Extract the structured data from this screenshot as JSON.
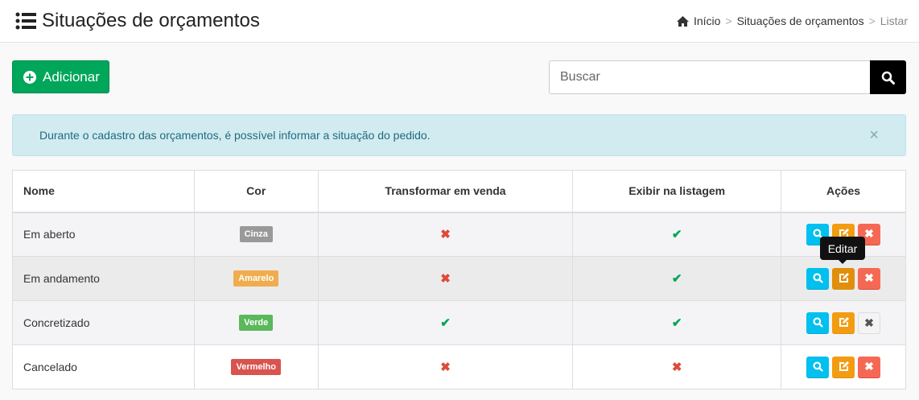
{
  "header": {
    "title": "Situações de orçamentos",
    "breadcrumb": [
      {
        "label": "Início"
      },
      {
        "label": "Situações de orçamentos"
      },
      {
        "label": "Listar"
      }
    ]
  },
  "toolbar": {
    "add_label": "Adicionar",
    "search_placeholder": "Buscar"
  },
  "alert": {
    "text": "Durante o cadastro das orçamentos, é possível informar a situação do pedido.",
    "close": "×"
  },
  "table": {
    "columns": [
      "Nome",
      "Cor",
      "Transformar em venda",
      "Exibir na listagem",
      "Ações"
    ],
    "rows": [
      {
        "nome": "Em aberto",
        "cor": "Cinza",
        "cor_hex": "#999999",
        "venda": false,
        "listagem": true,
        "deletable": true
      },
      {
        "nome": "Em andamento",
        "cor": "Amarelo",
        "cor_hex": "#f0ad4e",
        "venda": false,
        "listagem": true,
        "deletable": true
      },
      {
        "nome": "Concretizado",
        "cor": "Verde",
        "cor_hex": "#5cb85c",
        "venda": true,
        "listagem": true,
        "deletable": false
      },
      {
        "nome": "Cancelado",
        "cor": "Vermelho",
        "cor_hex": "#d9534f",
        "venda": false,
        "listagem": false,
        "deletable": true
      }
    ]
  },
  "tooltip": {
    "text": "Editar"
  }
}
